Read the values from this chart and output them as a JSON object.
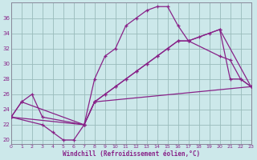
{
  "xlabel": "Windchill (Refroidissement éolien,°C)",
  "bg_color": "#cce8ea",
  "line_color": "#882288",
  "grid_color": "#99bbbb",
  "xlim": [
    0,
    23
  ],
  "ylim": [
    19.5,
    38
  ],
  "xticks": [
    0,
    1,
    2,
    3,
    4,
    5,
    6,
    7,
    8,
    9,
    10,
    11,
    12,
    13,
    14,
    15,
    16,
    17,
    18,
    19,
    20,
    21,
    22,
    23
  ],
  "yticks": [
    20,
    22,
    24,
    26,
    28,
    30,
    32,
    34,
    36
  ],
  "curve1_x": [
    0,
    1,
    7,
    8,
    9,
    10,
    11,
    12,
    13,
    14,
    15,
    16,
    17,
    20,
    21,
    22,
    23
  ],
  "curve1_y": [
    23,
    25,
    22,
    28,
    31,
    32,
    35,
    36,
    37,
    37.5,
    37.5,
    35,
    33,
    31,
    30.5,
    28,
    27
  ],
  "curve2_x": [
    0,
    3,
    4,
    5,
    6,
    7,
    8,
    23
  ],
  "curve2_y": [
    23,
    22,
    21,
    20,
    20,
    22,
    25,
    27
  ],
  "curve3_x": [
    0,
    1,
    2,
    3,
    7,
    8,
    9,
    10,
    11,
    12,
    13,
    14,
    15,
    16,
    17,
    20,
    21,
    22,
    23
  ],
  "curve3_y": [
    23,
    25,
    26,
    23,
    22,
    25,
    26,
    27,
    28,
    29,
    30,
    31,
    32,
    33,
    33,
    34.5,
    28,
    28,
    27
  ],
  "curve4_x": [
    0,
    7,
    8,
    9,
    10,
    11,
    12,
    13,
    14,
    15,
    16,
    17,
    18,
    19,
    20,
    23
  ],
  "curve4_y": [
    23,
    22,
    25,
    26,
    27,
    28,
    29,
    30,
    31,
    32,
    33,
    33,
    33.5,
    34,
    34.5,
    27
  ]
}
